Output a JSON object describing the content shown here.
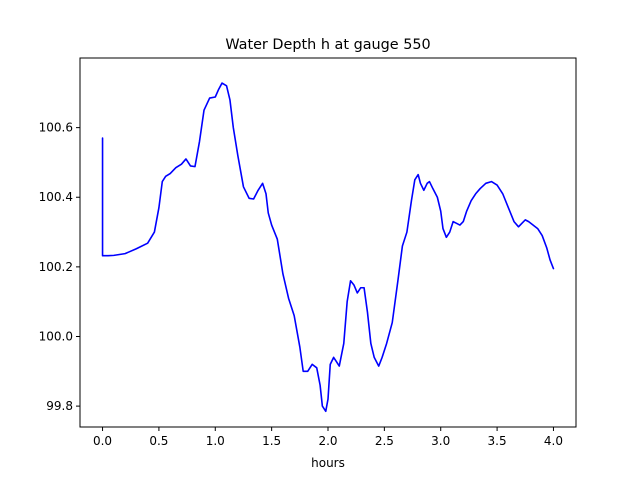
{
  "chart_data": {
    "type": "line",
    "title": "Water Depth h at gauge 550",
    "xlabel": "hours",
    "ylabel": "",
    "xlim": [
      -0.2,
      4.2
    ],
    "ylim": [
      99.74,
      100.8
    ],
    "xticks": [
      0.0,
      0.5,
      1.0,
      1.5,
      2.0,
      2.5,
      3.0,
      3.5,
      4.0
    ],
    "xtick_labels": [
      "0.0",
      "0.5",
      "1.0",
      "1.5",
      "2.0",
      "2.5",
      "3.0",
      "3.5",
      "4.0"
    ],
    "yticks": [
      99.8,
      100.0,
      100.2,
      100.4,
      100.6
    ],
    "ytick_labels": [
      "99.8",
      "100.0",
      "100.2",
      "100.4",
      "100.6"
    ],
    "grid": false,
    "legend": "none",
    "series": [
      {
        "color": "#0000ff",
        "x": [
          0.0,
          0.0,
          0.05,
          0.1,
          0.2,
          0.3,
          0.4,
          0.46,
          0.5,
          0.53,
          0.56,
          0.6,
          0.65,
          0.7,
          0.74,
          0.78,
          0.82,
          0.86,
          0.9,
          0.95,
          1.0,
          1.03,
          1.06,
          1.1,
          1.13,
          1.16,
          1.2,
          1.25,
          1.3,
          1.34,
          1.38,
          1.42,
          1.45,
          1.47,
          1.5,
          1.55,
          1.6,
          1.65,
          1.7,
          1.75,
          1.78,
          1.82,
          1.86,
          1.9,
          1.93,
          1.95,
          1.98,
          2.0,
          2.02,
          2.05,
          2.07,
          2.1,
          2.14,
          2.17,
          2.2,
          2.23,
          2.26,
          2.29,
          2.32,
          2.35,
          2.38,
          2.41,
          2.45,
          2.48,
          2.52,
          2.57,
          2.62,
          2.66,
          2.7,
          2.74,
          2.77,
          2.8,
          2.82,
          2.85,
          2.88,
          2.9,
          2.93,
          2.97,
          3.0,
          3.02,
          3.05,
          3.08,
          3.11,
          3.14,
          3.17,
          3.2,
          3.23,
          3.27,
          3.31,
          3.35,
          3.4,
          3.45,
          3.5,
          3.55,
          3.6,
          3.65,
          3.69,
          3.72,
          3.75,
          3.78,
          3.82,
          3.86,
          3.9,
          3.94,
          3.97,
          4.0
        ],
        "y": [
          100.57,
          100.232,
          100.232,
          100.233,
          100.238,
          100.252,
          100.268,
          100.3,
          100.37,
          100.445,
          100.46,
          100.468,
          100.485,
          100.495,
          100.51,
          100.49,
          100.488,
          100.56,
          100.65,
          100.685,
          100.688,
          100.71,
          100.728,
          100.72,
          100.68,
          100.6,
          100.52,
          100.43,
          100.397,
          100.395,
          100.42,
          100.44,
          100.41,
          100.355,
          100.32,
          100.28,
          100.18,
          100.11,
          100.06,
          99.97,
          99.9,
          99.9,
          99.92,
          99.91,
          99.86,
          99.8,
          99.785,
          99.82,
          99.92,
          99.94,
          99.93,
          99.915,
          99.98,
          100.1,
          100.16,
          100.148,
          100.125,
          100.14,
          100.14,
          100.07,
          99.98,
          99.94,
          99.915,
          99.94,
          99.98,
          100.04,
          100.16,
          100.26,
          100.3,
          100.39,
          100.45,
          100.465,
          100.44,
          100.42,
          100.44,
          100.445,
          100.425,
          100.4,
          100.36,
          100.31,
          100.285,
          100.3,
          100.33,
          100.325,
          100.32,
          100.33,
          100.36,
          100.39,
          100.41,
          100.425,
          100.44,
          100.445,
          100.435,
          100.41,
          100.37,
          100.33,
          100.315,
          100.325,
          100.335,
          100.33,
          100.32,
          100.31,
          100.29,
          100.255,
          100.22,
          100.195
        ]
      }
    ]
  }
}
